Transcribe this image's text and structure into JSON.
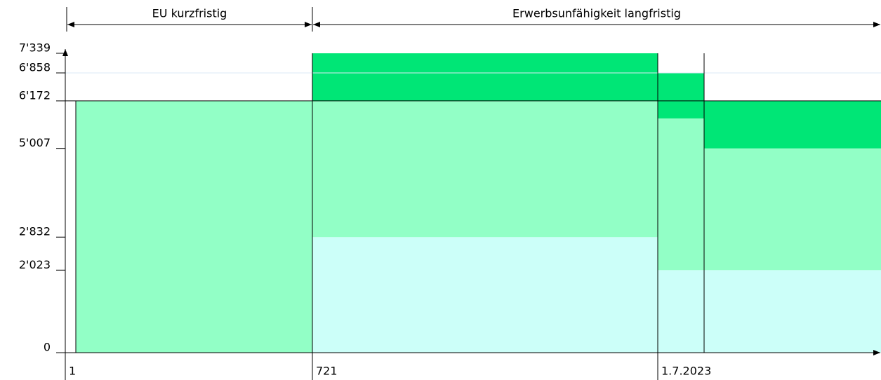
{
  "chart_data": {
    "type": "stacked-step",
    "categories": [
      "1",
      "721",
      null,
      "1.7.2023"
    ],
    "series": [
      {
        "color": "#ccfff9",
        "values": [
          null,
          2832,
          2023,
          2023
        ]
      },
      {
        "color": "#92ffc6",
        "values": [
          6172,
          3340,
          3719,
          2984
        ]
      },
      {
        "color": "#00e676",
        "values": [
          null,
          1167,
          1116,
          1165
        ]
      }
    ],
    "ylim": [
      0,
      7339
    ],
    "yticks": [
      {
        "value": 7339,
        "label": "7'339"
      },
      {
        "value": 6858,
        "label": "6'858"
      },
      {
        "value": 6172,
        "label": "6'172"
      },
      {
        "value": 5007,
        "label": "5'007"
      },
      {
        "value": 2832,
        "label": "2'832"
      },
      {
        "value": 2023,
        "label": "2'023"
      },
      0
    ],
    "annotations": [
      "EU kurzfristig",
      "Erwerbsunfähigkeit langfristig"
    ]
  }
}
